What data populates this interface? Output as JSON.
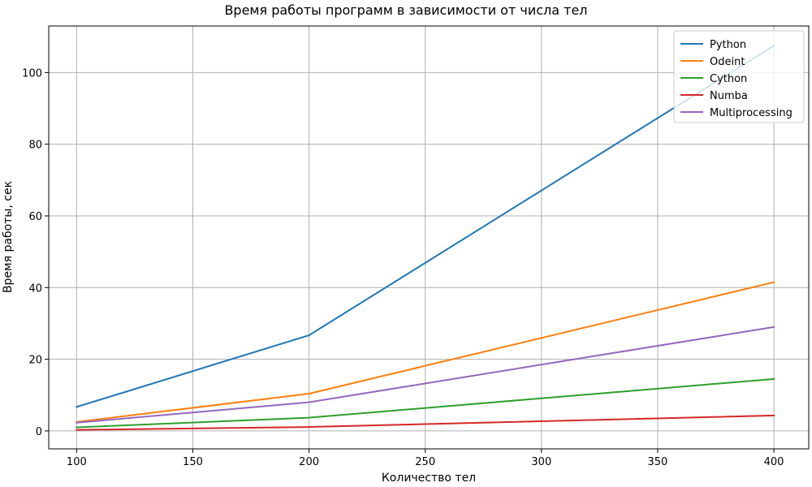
{
  "chart_data": {
    "type": "line",
    "title": "Время работы программ в зависимости от числа тел",
    "xlabel": "Количество тел",
    "ylabel": "Время работы, сек",
    "xlim": [
      88,
      415
    ],
    "ylim": [
      -5,
      113
    ],
    "xticks": [
      100,
      150,
      200,
      250,
      300,
      350,
      400
    ],
    "yticks": [
      0,
      20,
      40,
      60,
      80,
      100
    ],
    "grid": true,
    "legend_position": "top-right",
    "x": [
      100,
      200,
      400
    ],
    "series": [
      {
        "name": "Python",
        "color": "#1f77b4",
        "values": [
          6.7,
          26.7,
          107.5
        ]
      },
      {
        "name": "Odeint",
        "color": "#ff7f0e",
        "values": [
          2.5,
          10.4,
          41.5
        ]
      },
      {
        "name": "Cython",
        "color": "#2ca02c",
        "values": [
          1.0,
          3.7,
          14.5
        ]
      },
      {
        "name": "Numba",
        "color": "#d62728",
        "values": [
          0.3,
          1.1,
          4.3
        ]
      },
      {
        "name": "Multiprocessing",
        "color": "#9467bd",
        "values": [
          2.3,
          8.0,
          29.0
        ]
      }
    ]
  }
}
